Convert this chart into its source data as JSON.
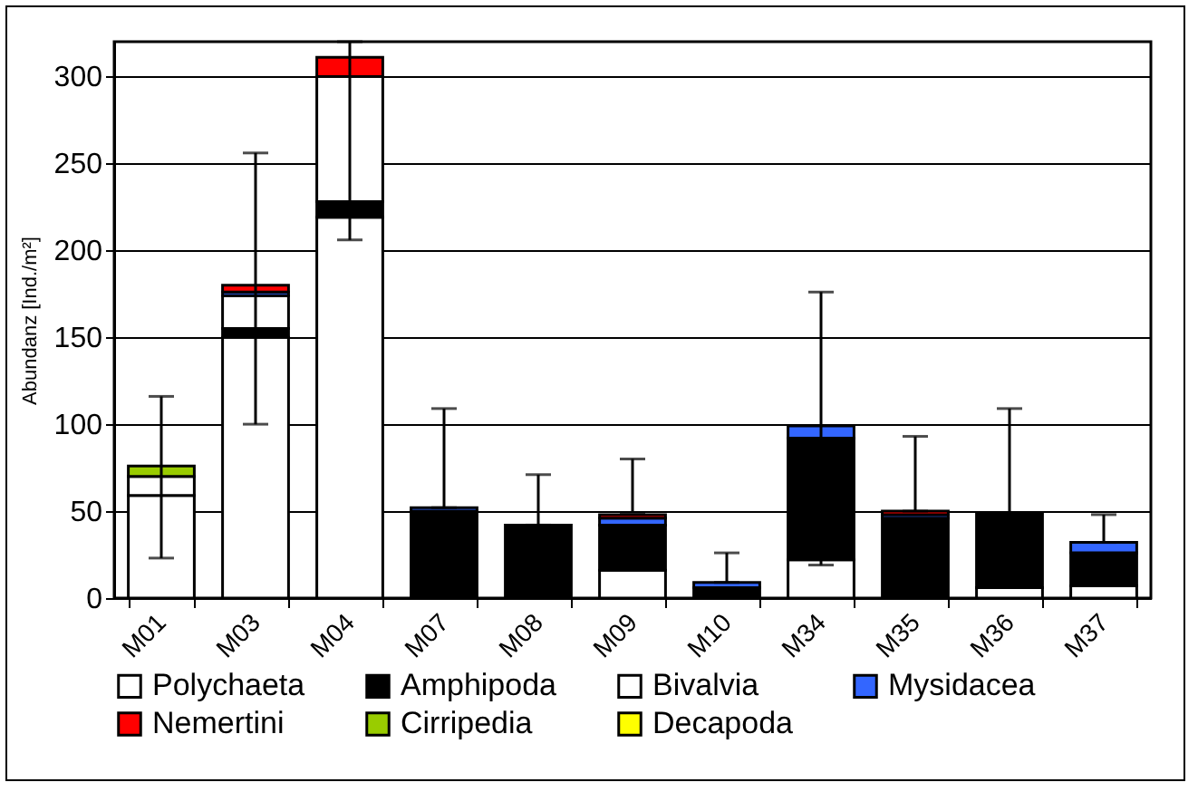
{
  "chart_data": {
    "type": "bar",
    "stacked": true,
    "ylabel": "Abundanz [Ind./m²]",
    "categories": [
      "M01",
      "M03",
      "M04",
      "M07",
      "M08",
      "M09",
      "M10",
      "M34",
      "M35",
      "M36",
      "M37"
    ],
    "series": [
      {
        "name": "Polychaeta",
        "color": "#ffffff",
        "values": [
          59,
          150,
          219,
          null,
          null,
          16,
          null,
          22,
          null,
          6,
          7
        ]
      },
      {
        "name": "Amphipoda",
        "color": "#000000",
        "values": [
          null,
          5,
          9,
          50,
          42,
          26,
          6,
          70,
          46,
          43,
          19
        ],
        "errors": [
          null,
          null,
          null,
          null,
          [
            42,
            71
          ],
          null,
          null,
          null,
          null,
          [
            49,
            109
          ],
          null
        ]
      },
      {
        "name": "Bivalvia",
        "color": "#ffffff",
        "values": [
          11,
          19,
          72,
          null,
          null,
          null,
          null,
          null,
          null,
          null,
          null
        ]
      },
      {
        "name": "Mysidacea",
        "color": "#3366ff",
        "values": [
          null,
          2,
          null,
          2,
          null,
          4,
          3,
          7,
          2,
          null,
          6
        ],
        "errors": [
          null,
          null,
          null,
          [
            52,
            109
          ],
          null,
          null,
          [
            9,
            26
          ],
          [
            19,
            176
          ],
          null,
          null,
          [
            32,
            48
          ]
        ]
      },
      {
        "name": "Nemertini",
        "color": "#ff0000",
        "values": [
          null,
          4,
          11,
          null,
          null,
          2,
          null,
          null,
          2,
          null,
          null
        ],
        "errors": [
          null,
          [
            100,
            256
          ],
          [
            206,
            320
          ],
          null,
          null,
          [
            49,
            80
          ],
          null,
          null,
          [
            50,
            93
          ],
          null,
          null
        ]
      },
      {
        "name": "Cirripedia",
        "color": "#99cc00",
        "values": [
          6,
          null,
          null,
          null,
          null,
          null,
          null,
          null,
          null,
          null,
          null
        ],
        "errors": [
          [
            23,
            116
          ],
          null,
          null,
          null,
          null,
          null,
          null,
          null,
          null,
          null,
          null
        ]
      },
      {
        "name": "Decapoda",
        "color": "#ffff00",
        "values": [
          null,
          null,
          null,
          null,
          null,
          null,
          null,
          null,
          null,
          null,
          null
        ]
      }
    ],
    "ylim": [
      0,
      320
    ],
    "yticks": [
      0,
      50,
      100,
      150,
      200,
      250,
      300
    ],
    "grid": "y",
    "legend": "bottom"
  }
}
